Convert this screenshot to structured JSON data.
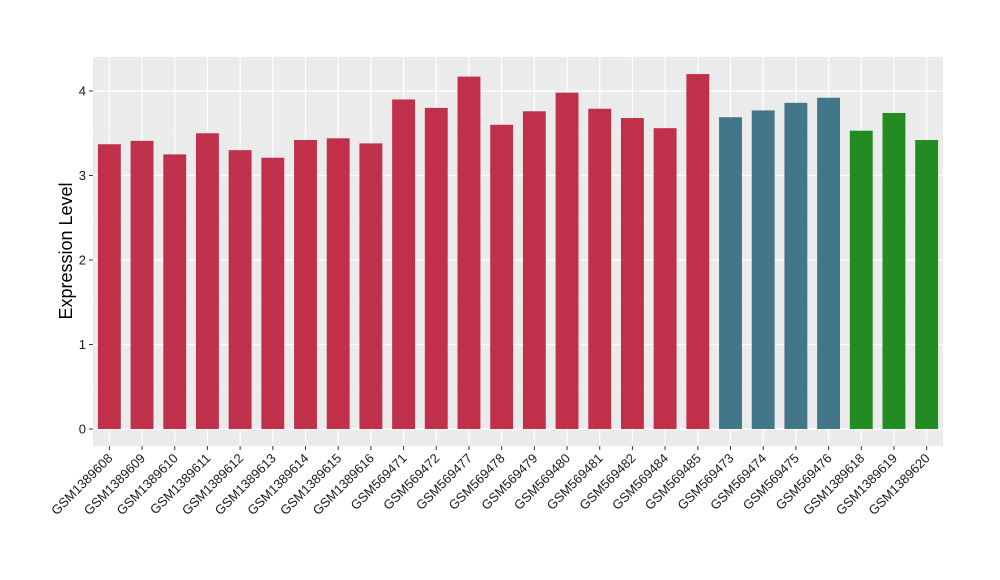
{
  "chart_data": {
    "type": "bar",
    "ylabel": "Expression Level",
    "xlabel": "",
    "title": "",
    "ylim": [
      0,
      4.4
    ],
    "yticks": [
      0,
      1,
      2,
      3,
      4
    ],
    "grid": true,
    "legend": "none",
    "colors": {
      "panel_background": "#EBEBEB",
      "grid_major": "#FFFFFF",
      "group_red": "#C0304A",
      "group_teal": "#417789",
      "group_green": "#228B22"
    },
    "categories": [
      "GSM1389608",
      "GSM1389609",
      "GSM1389610",
      "GSM1389611",
      "GSM1389612",
      "GSM1389613",
      "GSM1389614",
      "GSM1389615",
      "GSM1389616",
      "GSM569471",
      "GSM569472",
      "GSM569477",
      "GSM569478",
      "GSM569479",
      "GSM569480",
      "GSM569481",
      "GSM569482",
      "GSM569484",
      "GSM569485",
      "GSM569473",
      "GSM569474",
      "GSM569475",
      "GSM569476",
      "GSM1389618",
      "GSM1389619",
      "GSM1389620"
    ],
    "values": [
      3.37,
      3.41,
      3.25,
      3.5,
      3.3,
      3.21,
      3.42,
      3.44,
      3.38,
      3.9,
      3.8,
      4.17,
      3.6,
      3.76,
      3.98,
      3.79,
      3.68,
      3.56,
      4.2,
      3.69,
      3.77,
      3.86,
      3.92,
      3.53,
      3.74,
      3.42
    ],
    "bar_colors": [
      "#C0304A",
      "#C0304A",
      "#C0304A",
      "#C0304A",
      "#C0304A",
      "#C0304A",
      "#C0304A",
      "#C0304A",
      "#C0304A",
      "#C0304A",
      "#C0304A",
      "#C0304A",
      "#C0304A",
      "#C0304A",
      "#C0304A",
      "#C0304A",
      "#C0304A",
      "#C0304A",
      "#C0304A",
      "#417789",
      "#417789",
      "#417789",
      "#417789",
      "#228B22",
      "#228B22",
      "#228B22"
    ]
  }
}
